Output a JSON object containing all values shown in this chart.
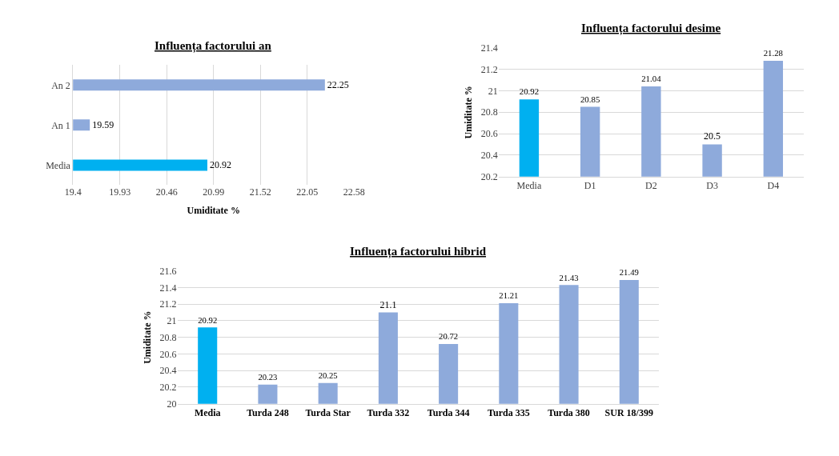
{
  "chart_data": [
    {
      "type": "bar",
      "orientation": "horizontal",
      "title": "Influența factorului an",
      "xlabel": "Umiditate %",
      "categories": [
        "An 2",
        "An 1",
        "Media"
      ],
      "values": [
        22.25,
        19.59,
        20.92
      ],
      "colors": [
        "#8eaadb",
        "#8eaadb",
        "#00b0f0"
      ],
      "xlim": [
        19.4,
        22.58
      ],
      "xticks": [
        19.4,
        19.93,
        20.46,
        20.99,
        21.52,
        22.05,
        22.58
      ],
      "grid": "x",
      "data_labels": true
    },
    {
      "type": "bar",
      "title": "Influența factorului desime",
      "ylabel": "Umiditate %",
      "categories": [
        "Media",
        "D1",
        "D2",
        "D3",
        "D4"
      ],
      "values": [
        20.92,
        20.85,
        21.04,
        20.5,
        21.28
      ],
      "colors": [
        "#00b0f0",
        "#8eaadb",
        "#8eaadb",
        "#8eaadb",
        "#8eaadb"
      ],
      "ylim": [
        20.2,
        21.4
      ],
      "yticks": [
        20.2,
        20.4,
        20.6,
        20.8,
        21,
        21.2,
        21.4
      ],
      "grid": "y",
      "data_labels": true
    },
    {
      "type": "bar",
      "title": "Influența factorului hibrid",
      "ylabel": "Umiditate %",
      "categories": [
        "Media",
        "Turda 248",
        "Turda Star",
        "Turda 332",
        "Turda 344",
        "Turda 335",
        "Turda 380",
        "SUR 18/399"
      ],
      "values": [
        20.92,
        20.23,
        20.25,
        21.1,
        20.72,
        21.21,
        21.43,
        21.49
      ],
      "colors": [
        "#00b0f0",
        "#8eaadb",
        "#8eaadb",
        "#8eaadb",
        "#8eaadb",
        "#8eaadb",
        "#8eaadb",
        "#8eaadb"
      ],
      "ylim": [
        20,
        21.6
      ],
      "yticks": [
        20,
        20.2,
        20.4,
        20.6,
        20.8,
        21,
        21.2,
        21.4,
        21.6
      ],
      "grid": "y",
      "data_labels": true
    }
  ]
}
